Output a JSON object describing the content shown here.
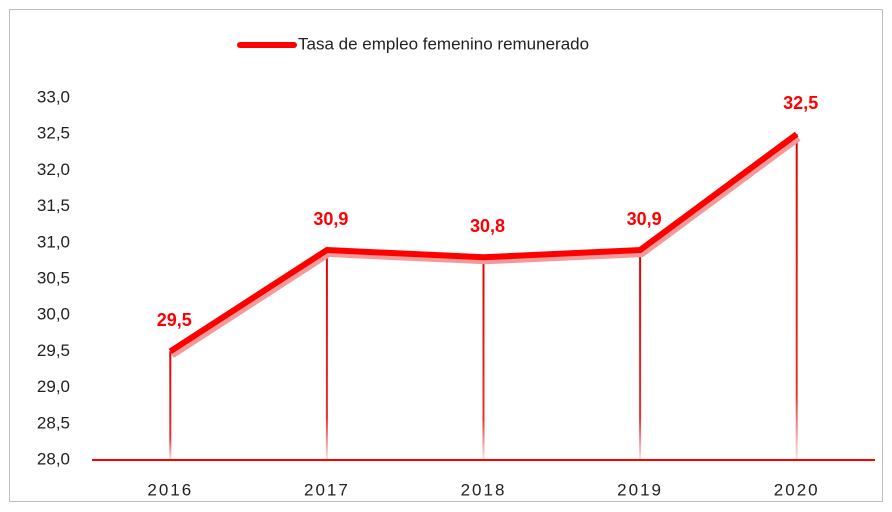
{
  "chart_data": {
    "type": "line",
    "categories": [
      "2016",
      "2017",
      "2018",
      "2019",
      "2020"
    ],
    "series": [
      {
        "name": "Tasa de empleo femenino remunerado",
        "color": "#ff0000",
        "values": [
          29.5,
          30.9,
          30.8,
          30.9,
          32.5
        ],
        "value_labels": [
          "29,5",
          "30,9",
          "30,8",
          "30,9",
          "32,5"
        ]
      }
    ],
    "ylim": [
      28,
      33
    ],
    "yticks": [
      {
        "value": 28,
        "label": "28,0"
      },
      {
        "value": 28.5,
        "label": "28,5"
      },
      {
        "value": 29,
        "label": "29,0"
      },
      {
        "value": 29.5,
        "label": "29,5"
      },
      {
        "value": 30,
        "label": "30,0"
      },
      {
        "value": 30.5,
        "label": "30,5"
      },
      {
        "value": 31,
        "label": "31,0"
      },
      {
        "value": 31.5,
        "label": "31,5"
      },
      {
        "value": 32,
        "label": "32,0"
      },
      {
        "value": 32.5,
        "label": "32,5"
      },
      {
        "value": 33,
        "label": "33,0"
      }
    ],
    "legend": "top",
    "drop_lines": true
  }
}
